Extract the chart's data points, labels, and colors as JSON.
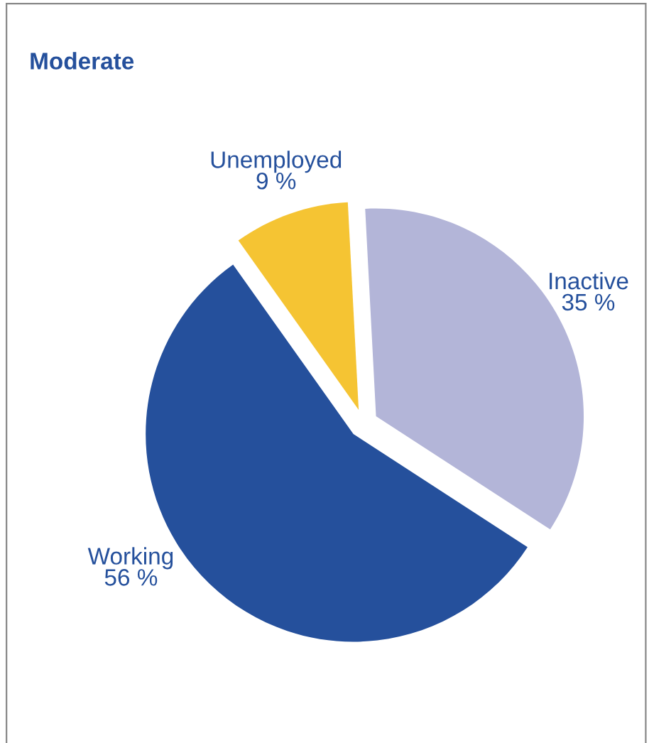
{
  "chart_data": {
    "type": "pie",
    "title": "Moderate",
    "categories": [
      "Inactive",
      "Working",
      "Unemployed"
    ],
    "values": [
      35,
      56,
      9
    ],
    "colors": [
      "#b3b5d8",
      "#25509c",
      "#f5c433"
    ],
    "value_labels": [
      "35 %",
      "56 %",
      "9 %"
    ]
  }
}
